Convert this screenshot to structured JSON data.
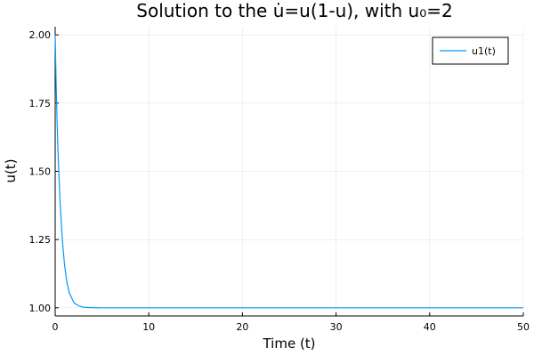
{
  "chart_data": {
    "type": "line",
    "title": "Solution to the u̇=u(1-u), with u₀=2",
    "xlabel": "Time (t)",
    "ylabel": "u(t)",
    "xlim": [
      0,
      50
    ],
    "ylim": [
      0.97,
      2.03
    ],
    "xticks": [
      0,
      10,
      20,
      30,
      40,
      50
    ],
    "xtick_labels": [
      "0",
      "10",
      "20",
      "30",
      "40",
      "50"
    ],
    "yticks": [
      1.0,
      1.25,
      1.5,
      1.75,
      2.0
    ],
    "ytick_labels": [
      "1.00",
      "1.25",
      "1.50",
      "1.75",
      "2.00"
    ],
    "grid": true,
    "legend_position": "top-right",
    "series": [
      {
        "name": "u1(t)",
        "color": "#009af9",
        "x": [
          0,
          0.1,
          0.2,
          0.3,
          0.5,
          0.75,
          1,
          1.25,
          1.5,
          2,
          2.5,
          3,
          3.5,
          4,
          4.5,
          5,
          6,
          7,
          8,
          10,
          15,
          20,
          25,
          30,
          35,
          40,
          45,
          50
        ],
        "y": [
          2.0,
          1.826,
          1.689,
          1.574,
          1.4,
          1.255,
          1.157,
          1.094,
          1.055,
          1.019,
          1.007,
          1.0025,
          1.0009,
          1.0003,
          1.0001,
          1.0,
          1.0,
          1.0,
          1.0,
          1.0,
          1.0,
          1.0,
          1.0,
          1.0,
          1.0,
          1.0,
          1.0,
          1.0
        ]
      }
    ]
  }
}
